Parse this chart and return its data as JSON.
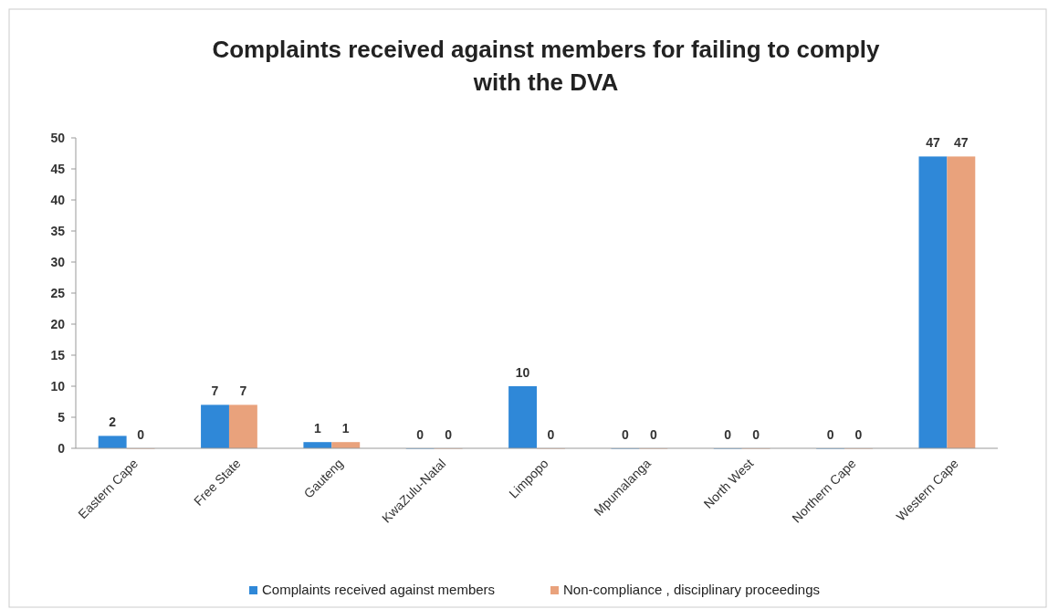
{
  "chart_data": {
    "type": "bar",
    "title": "Complaints received against members for failing to comply with the DVA",
    "categories": [
      "Eastern Cape",
      "Free State",
      "Gauteng",
      "KwaZulu-Natal",
      "Limpopo",
      "Mpumalanga",
      "North West",
      "Northern Cape",
      "Western Cape"
    ],
    "series": [
      {
        "name": "Complaints received against members",
        "color": "#2f88d8",
        "values": [
          2,
          7,
          1,
          0,
          10,
          0,
          0,
          0,
          47
        ]
      },
      {
        "name": "Non-compliance , disciplinary proceedings",
        "color": "#e9a27c",
        "values": [
          0,
          7,
          1,
          0,
          0,
          0,
          0,
          0,
          47
        ]
      }
    ],
    "ylim": [
      0,
      50
    ],
    "yticks": [
      0,
      5,
      10,
      15,
      20,
      25,
      30,
      35,
      40,
      45,
      50
    ],
    "grid": false,
    "data_labels": true,
    "legend": "bottom"
  }
}
